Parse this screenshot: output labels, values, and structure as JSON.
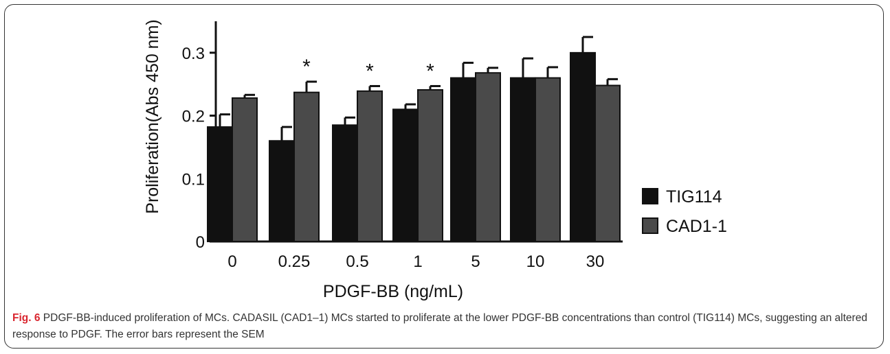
{
  "chart_data": {
    "type": "bar",
    "categories": [
      "0",
      "0.25",
      "0.5",
      "1",
      "5",
      "10",
      "30"
    ],
    "series": [
      {
        "name": "TIG114",
        "values": [
          0.182,
          0.16,
          0.185,
          0.21,
          0.26,
          0.26,
          0.3
        ],
        "errors": [
          0.02,
          0.022,
          0.012,
          0.008,
          0.024,
          0.031,
          0.025
        ],
        "color": "#111111"
      },
      {
        "name": "CAD1-1",
        "values": [
          0.228,
          0.237,
          0.239,
          0.241,
          0.268,
          0.26,
          0.248
        ],
        "errors": [
          0.005,
          0.017,
          0.008,
          0.006,
          0.008,
          0.017,
          0.01
        ],
        "color": "#4a4a4a"
      }
    ],
    "xlabel": "PDGF-BB (ng/mL)",
    "ylabel": "Proliferation(Abs 450 nm)",
    "ylim": [
      0,
      0.35
    ],
    "yticks": [
      "0",
      "0.1",
      "0.2",
      "0.3"
    ],
    "ytick_values": [
      0,
      0.1,
      0.2,
      0.3
    ],
    "significance_marker": "*",
    "significant_categories": [
      "0.25",
      "0.5",
      "1"
    ],
    "legend_position": "right",
    "grid": false
  },
  "caption": {
    "label": "Fig. 6",
    "text": " PDGF-BB-induced proliferation of MCs. CADASIL (CAD1–1) MCs started to proliferate at the lower PDGF-BB concentrations than control (TIG114) MCs, suggesting an altered response to PDGF. The error bars represent the SEM"
  }
}
